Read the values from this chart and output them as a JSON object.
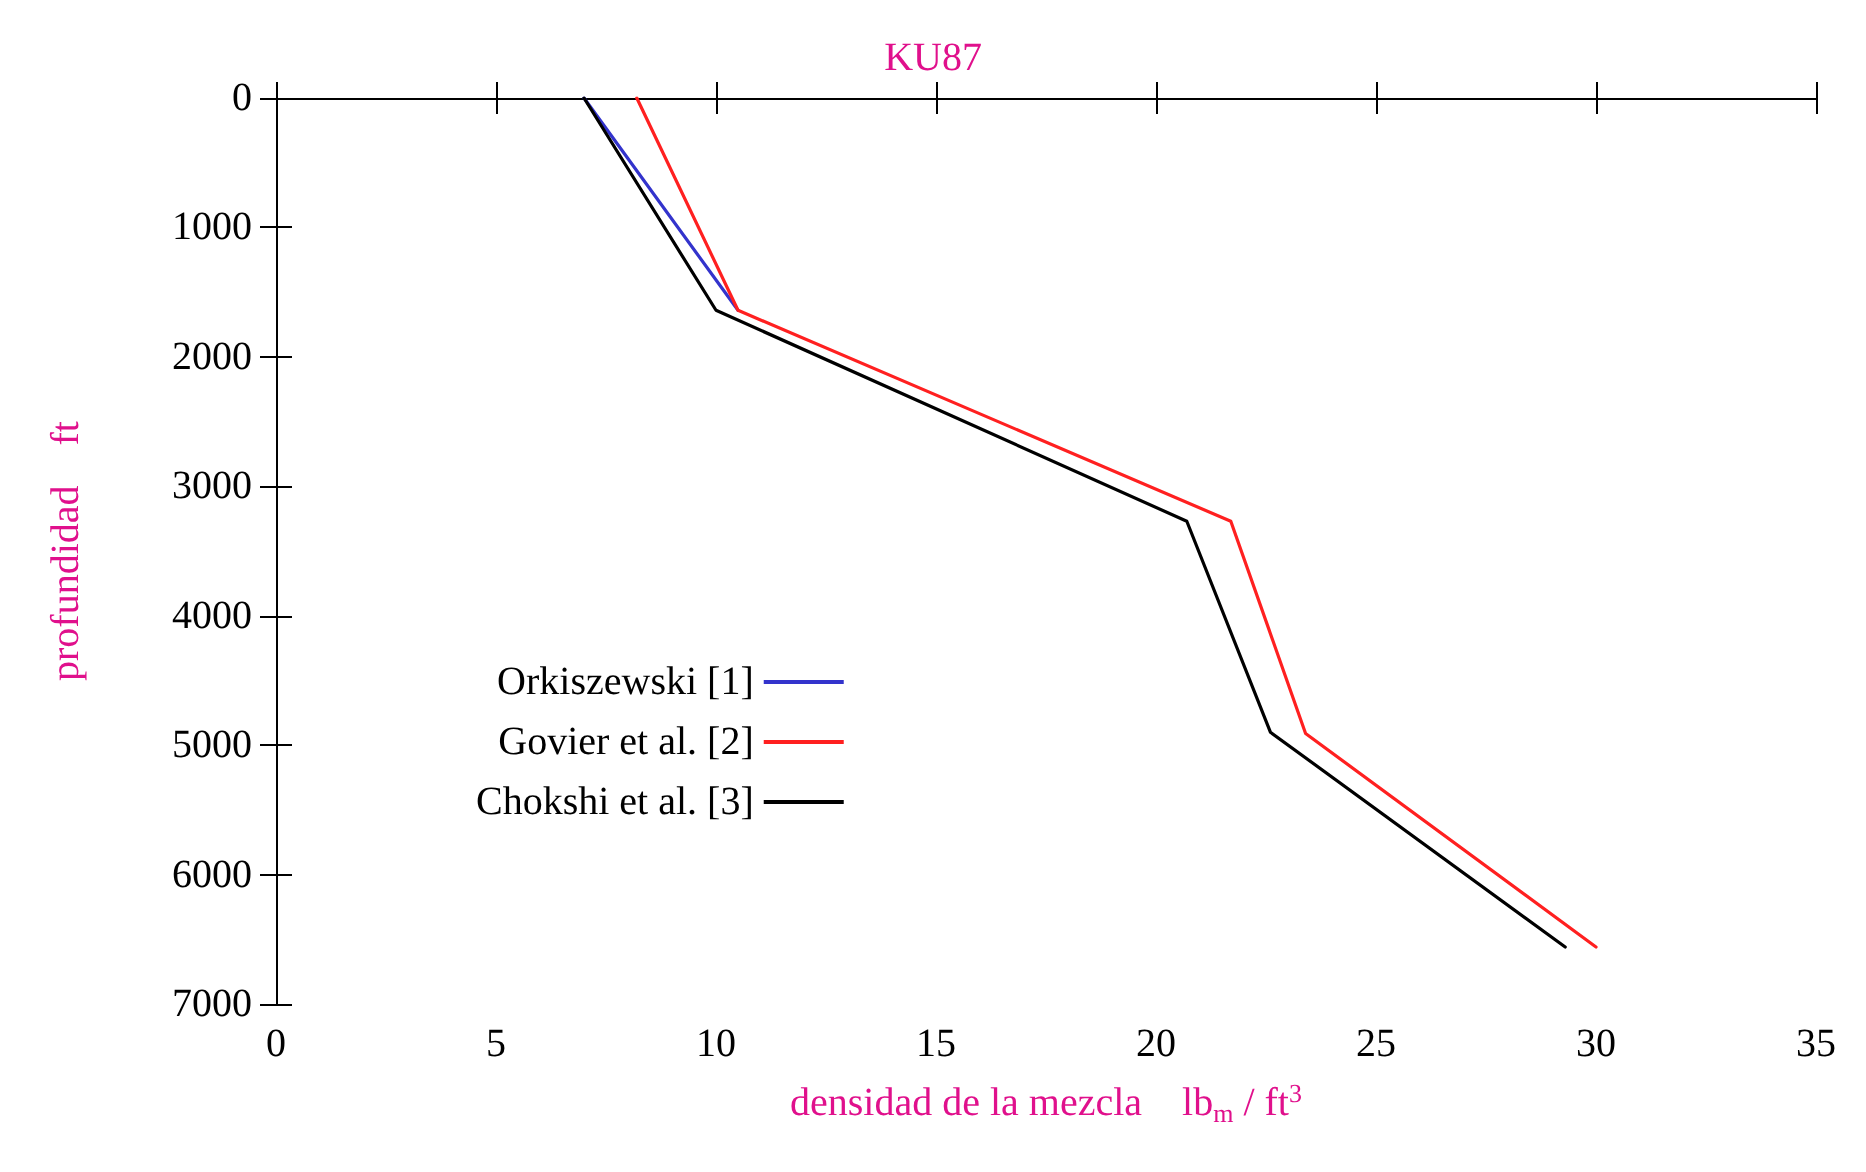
{
  "chart_data": {
    "type": "line",
    "title": "KU87",
    "xlabel": "densidad de la mezcla    lb$_{m}$ / ft$^{3}$",
    "ylabel": "profundidad    ft",
    "xlim": [
      0,
      35
    ],
    "xticks": [
      0,
      5,
      10,
      15,
      20,
      25,
      30,
      35
    ],
    "ylim": [
      7000,
      0
    ],
    "yticks": [
      0,
      1000,
      2000,
      3000,
      4000,
      5000,
      6000,
      7000
    ],
    "grid": false,
    "legend": "left",
    "marker": "none",
    "line_style": "solid",
    "series": [
      {
        "name": "Orkiszewski [1]",
        "color": "#3333cc",
        "x": [
          7.0,
          10.5
        ],
        "values": [
          0,
          1640
        ]
      },
      {
        "name": "Govier et al. [2]",
        "color": "#ff2020",
        "x": [
          8.2,
          10.5,
          21.7,
          23.4,
          30.0
        ],
        "values": [
          0,
          1640,
          3270,
          4910,
          6560
        ]
      },
      {
        "name": "Chokshi et al. [3]",
        "color": "#000000",
        "x": [
          7.0,
          10.0,
          20.7,
          22.6,
          29.3
        ],
        "values": [
          0,
          1640,
          3270,
          4900,
          6560
        ]
      }
    ]
  }
}
